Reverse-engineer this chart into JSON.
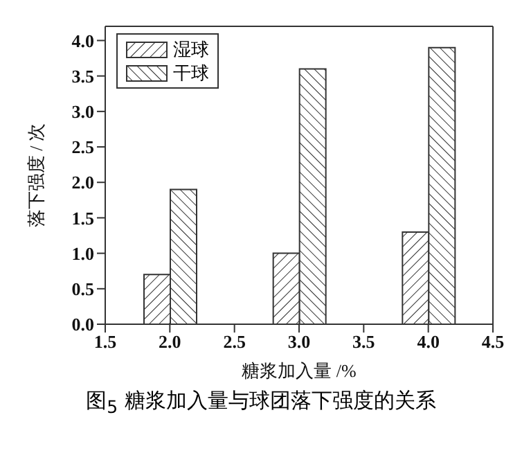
{
  "chart_data": {
    "type": "bar",
    "title": "图$_{5}$ 糖浆加入量与球团落下强度的关系",
    "xlabel": "糖浆加入量 /%",
    "ylabel": "落下强度 / 次",
    "x": [
      2.0,
      3.0,
      4.0
    ],
    "series": [
      {
        "name": "湿球",
        "color": "#333333",
        "values": [
          0.7,
          1.0,
          1.3
        ]
      },
      {
        "name": "干球",
        "color": "#333333",
        "values": [
          1.9,
          3.6,
          3.9
        ]
      }
    ],
    "xlim": [
      1.5,
      4.5
    ],
    "xticks": [
      {
        "value": 1.5,
        "label": "1.5"
      },
      {
        "value": 2,
        "label": "2.0"
      },
      {
        "value": 2.5,
        "label": "2.5"
      },
      {
        "value": 3,
        "label": "3.0"
      },
      {
        "value": 3.5,
        "label": "3.5"
      },
      {
        "value": 4,
        "label": "4.0"
      },
      {
        "value": 4.5,
        "label": "4.5"
      }
    ],
    "ylim": [
      0,
      4.2
    ],
    "yticks": [
      {
        "value": 0,
        "label": "0.0"
      },
      {
        "value": 0.5,
        "label": "0.5"
      },
      {
        "value": 1,
        "label": "1.0"
      },
      {
        "value": 1.5,
        "label": "1.5"
      },
      {
        "value": 2,
        "label": "2.0"
      },
      {
        "value": 2.5,
        "label": "2.5"
      },
      {
        "value": 3,
        "label": "3.0"
      },
      {
        "value": 3.5,
        "label": "3.5"
      },
      {
        "value": 4,
        "label": "4.0"
      }
    ],
    "grid": false,
    "legend": "top left"
  }
}
